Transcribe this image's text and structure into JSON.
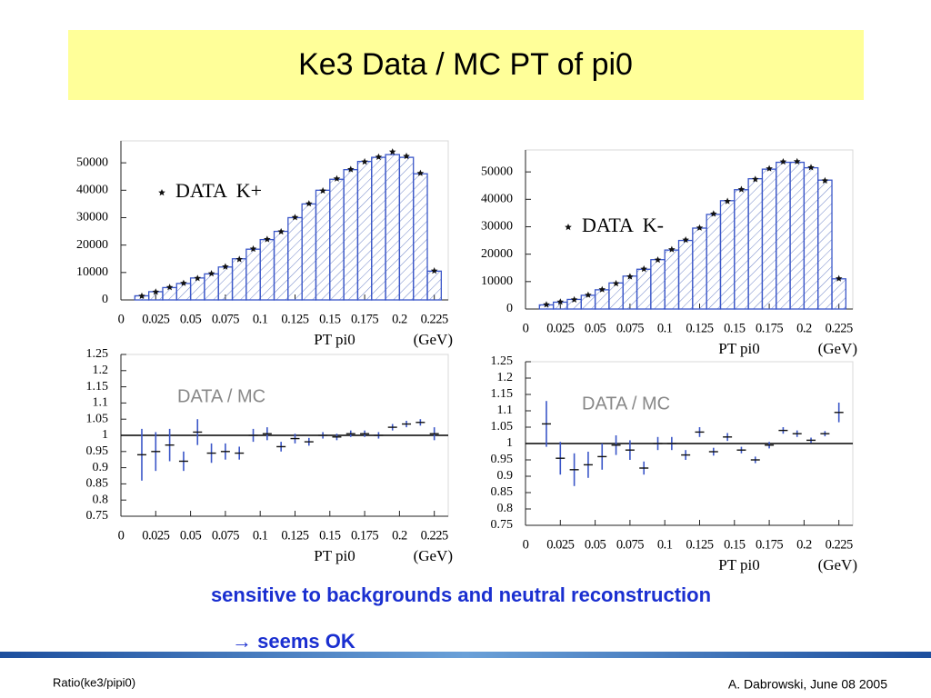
{
  "slide": {
    "title": "Ke3 Data / MC PT of pi0",
    "note": "sensitive to backgrounds and neutral reconstruction",
    "conclusion": "→ seems OK",
    "footer_left": "Ratio(ke3/pipi0)",
    "footer_right": "A. Dabrowski, June 08 2005"
  },
  "chart_data": [
    {
      "type": "histogram",
      "xlabel": "PT pi0",
      "xunit": "(GeV)",
      "bins": [
        0.01,
        0.02,
        0.03,
        0.04,
        0.05,
        0.06,
        0.07,
        0.08,
        0.09,
        0.1,
        0.11,
        0.12,
        0.13,
        0.14,
        0.15,
        0.16,
        0.17,
        0.18,
        0.19,
        0.2,
        0.21,
        0.22,
        0.23
      ],
      "counts": [
        1500,
        3000,
        4500,
        6000,
        8000,
        9500,
        12000,
        15000,
        18500,
        22000,
        25000,
        30000,
        35000,
        40000,
        44000,
        47500,
        50500,
        52000,
        53000,
        52000,
        46000,
        10500
      ],
      "color": "#3a56c8",
      "points": {
        "name": "DATA  K+",
        "values": [
          1400,
          2900,
          4600,
          6100,
          7900,
          9600,
          12100,
          14800,
          18600,
          22100,
          24900,
          30100,
          35100,
          39800,
          44200,
          47600,
          50400,
          52100,
          54000,
          52400,
          46200,
          10600
        ]
      },
      "xlim": [
        0,
        0.235
      ],
      "xticks": [
        0,
        0.025,
        0.05,
        0.075,
        0.1,
        0.125,
        0.15,
        0.175,
        0.2,
        0.225
      ],
      "ylim": [
        0,
        58000
      ],
      "yticks": [
        0,
        10000,
        20000,
        30000,
        40000,
        50000
      ]
    },
    {
      "type": "histogram",
      "xlabel": "PT pi0",
      "xunit": "(GeV)",
      "bins": [
        0.01,
        0.02,
        0.03,
        0.04,
        0.05,
        0.06,
        0.07,
        0.08,
        0.09,
        0.1,
        0.11,
        0.12,
        0.13,
        0.14,
        0.15,
        0.16,
        0.17,
        0.18,
        0.19,
        0.2,
        0.21,
        0.22,
        0.23
      ],
      "counts": [
        1500,
        2500,
        3500,
        5000,
        7000,
        9500,
        12000,
        14500,
        18000,
        21500,
        25000,
        29500,
        34500,
        39500,
        43500,
        47500,
        51000,
        53500,
        53500,
        51500,
        47000,
        11000
      ],
      "color": "#3a56c8",
      "points": {
        "name": "DATA  K-",
        "values": [
          1600,
          2600,
          3400,
          5100,
          7100,
          9300,
          11800,
          14600,
          17900,
          21700,
          25200,
          29600,
          34700,
          39300,
          43600,
          47300,
          51200,
          53700,
          53800,
          51600,
          46800,
          11100
        ]
      },
      "xlim": [
        0,
        0.235
      ],
      "xticks": [
        0,
        0.025,
        0.05,
        0.075,
        0.1,
        0.125,
        0.15,
        0.175,
        0.2,
        0.225
      ],
      "ylim": [
        0,
        58000
      ],
      "yticks": [
        0,
        10000,
        20000,
        30000,
        40000,
        50000
      ]
    },
    {
      "type": "ratio",
      "annotation": "DATA / MC",
      "xlabel": "PT pi0",
      "xunit": "(GeV)",
      "color": "#3a56c8",
      "hline": 1,
      "x": [
        0.015,
        0.025,
        0.035,
        0.045,
        0.055,
        0.065,
        0.075,
        0.085,
        0.095,
        0.105,
        0.115,
        0.125,
        0.135,
        0.145,
        0.155,
        0.165,
        0.175,
        0.185,
        0.195,
        0.205,
        0.215,
        0.225
      ],
      "values": [
        0.94,
        0.95,
        0.97,
        0.92,
        1.01,
        0.945,
        0.95,
        0.945,
        1.0,
        1.005,
        0.965,
        0.99,
        0.98,
        1.0,
        0.995,
        1.005,
        1.005,
        1.0,
        1.025,
        1.035,
        1.04,
        1.005
      ],
      "errors": [
        0.08,
        0.06,
        0.05,
        0.03,
        0.04,
        0.03,
        0.025,
        0.02,
        0.02,
        0.02,
        0.015,
        0.015,
        0.012,
        0.01,
        0.01,
        0.01,
        0.01,
        0.01,
        0.01,
        0.01,
        0.01,
        0.02
      ],
      "xlim": [
        0,
        0.235
      ],
      "xticks": [
        0,
        0.025,
        0.05,
        0.075,
        0.1,
        0.125,
        0.15,
        0.175,
        0.2,
        0.225
      ],
      "ylim": [
        0.75,
        1.25
      ],
      "yticks": [
        0.75,
        0.8,
        0.85,
        0.9,
        0.95,
        1,
        1.05,
        1.1,
        1.15,
        1.2,
        1.25
      ]
    },
    {
      "type": "ratio",
      "annotation": "DATA / MC",
      "xlabel": "PT pi0",
      "xunit": "(GeV)",
      "color": "#3a56c8",
      "hline": 1,
      "x": [
        0.015,
        0.025,
        0.035,
        0.045,
        0.055,
        0.065,
        0.075,
        0.085,
        0.095,
        0.105,
        0.115,
        0.125,
        0.135,
        0.145,
        0.155,
        0.165,
        0.175,
        0.185,
        0.195,
        0.205,
        0.215,
        0.225
      ],
      "values": [
        1.06,
        0.955,
        0.92,
        0.935,
        0.96,
        0.995,
        0.98,
        0.925,
        1.0,
        1.0,
        0.965,
        1.035,
        0.975,
        1.02,
        0.98,
        0.95,
        0.995,
        1.04,
        1.03,
        1.01,
        1.03,
        1.095
      ],
      "errors": [
        0.07,
        0.05,
        0.05,
        0.04,
        0.04,
        0.03,
        0.03,
        0.02,
        0.02,
        0.02,
        0.015,
        0.015,
        0.012,
        0.012,
        0.01,
        0.01,
        0.01,
        0.01,
        0.01,
        0.008,
        0.008,
        0.03
      ],
      "xlim": [
        0,
        0.235
      ],
      "xticks": [
        0,
        0.025,
        0.05,
        0.075,
        0.1,
        0.125,
        0.15,
        0.175,
        0.2,
        0.225
      ],
      "ylim": [
        0.75,
        1.25
      ],
      "yticks": [
        0.75,
        0.8,
        0.85,
        0.9,
        0.95,
        1,
        1.05,
        1.1,
        1.15,
        1.2,
        1.25
      ]
    }
  ]
}
